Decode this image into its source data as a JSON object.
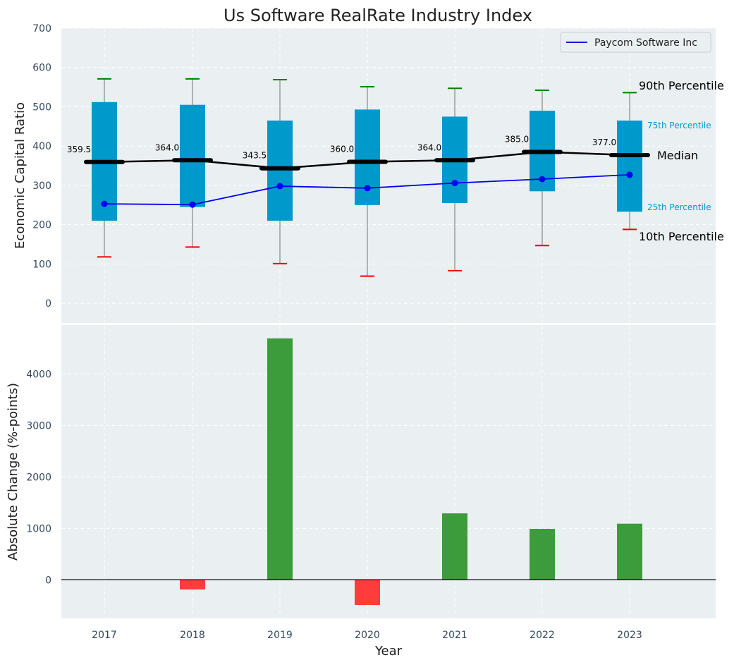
{
  "colors": {
    "plot_bg": "#eaeff1",
    "box_fill": "#0099cc",
    "median_line": "#000000",
    "company_line": "#0000ee",
    "whisker": "#888888",
    "p90_cap": "#008000",
    "p10_cap": "#ee0000",
    "bar_pos": "#3c9c3c",
    "bar_neg": "#ff3c3c",
    "pct_label": "#0099cc",
    "tick_text": "#34495e"
  },
  "chart_data": [
    {
      "type": "box",
      "title": "Us Software RealRate Industry Index",
      "xlabel": "",
      "ylabel": "Economic Capital Ratio",
      "ylim": [
        -50,
        700
      ],
      "yticks": [
        0,
        100,
        200,
        300,
        400,
        500,
        600,
        700
      ],
      "categories": [
        "2017",
        "2018",
        "2019",
        "2020",
        "2021",
        "2022",
        "2023"
      ],
      "p10": [
        118,
        143,
        101,
        69,
        83,
        147,
        188
      ],
      "p25": [
        210,
        245,
        210,
        250,
        255,
        285,
        233
      ],
      "median": [
        359.5,
        364.0,
        343.5,
        360.0,
        364.0,
        385.0,
        377.0
      ],
      "median_labels": [
        "359.5",
        "364.0",
        "343.5",
        "360.0",
        "364.0",
        "385.0",
        "377.0"
      ],
      "p75": [
        512,
        505,
        465,
        493,
        475,
        490,
        465
      ],
      "p90": [
        571,
        571,
        569,
        551,
        547,
        542,
        536
      ],
      "company": {
        "name": "Paycom Software Inc",
        "values": [
          253,
          251,
          298,
          293,
          306,
          316,
          327
        ]
      },
      "legend": {
        "label": "Paycom Software Inc",
        "position": "top-right"
      },
      "annotations": {
        "p90": "90th Percentile",
        "p75": "75th Percentile",
        "median": "Median",
        "p25": "25th Percentile",
        "p10": "10th Percentile"
      },
      "grid": true
    },
    {
      "type": "bar",
      "xlabel": "Year",
      "ylabel": "Absolute Change (%-points)",
      "ylim": [
        -750,
        4950
      ],
      "yticks": [
        0,
        1000,
        2000,
        3000,
        4000
      ],
      "categories": [
        "2017",
        "2018",
        "2019",
        "2020",
        "2021",
        "2022",
        "2023"
      ],
      "values": [
        0,
        -190,
        4690,
        -490,
        1290,
        990,
        1090
      ],
      "grid": true
    }
  ]
}
